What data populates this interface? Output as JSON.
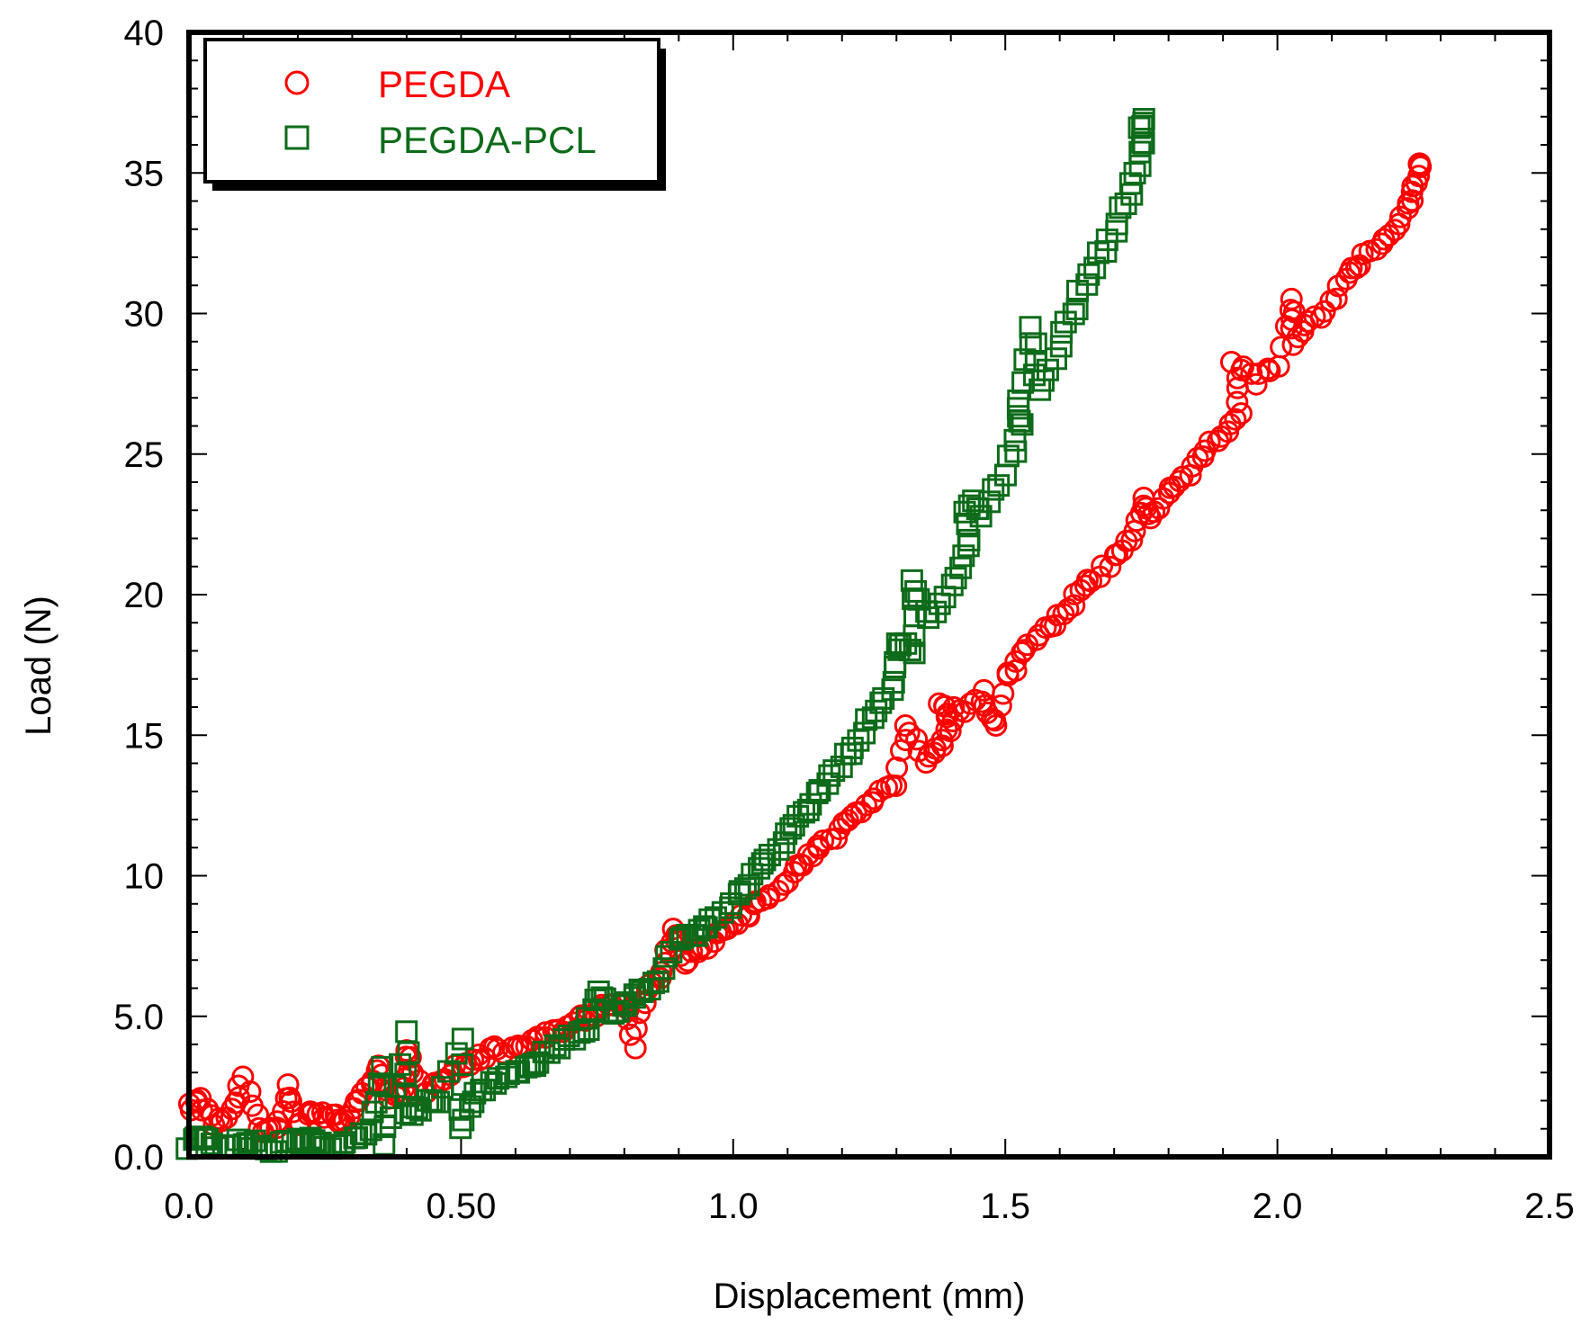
{
  "chart_data": {
    "type": "scatter",
    "title": "",
    "xlabel": "Displacement (mm)",
    "ylabel": "Load (N)",
    "xlim": [
      0,
      2.5
    ],
    "ylim": [
      0,
      40
    ],
    "xticks": [
      {
        "value": 0,
        "label": "0.0"
      },
      {
        "value": 0.5,
        "label": "0.50"
      },
      {
        "value": 1.0,
        "label": "1.0"
      },
      {
        "value": 1.5,
        "label": "1.5"
      },
      {
        "value": 2.0,
        "label": "2.0"
      },
      {
        "value": 2.5,
        "label": "2.5"
      }
    ],
    "yticks": [
      {
        "value": 0,
        "label": "0.0"
      },
      {
        "value": 5,
        "label": "5.0"
      },
      {
        "value": 10,
        "label": "10"
      },
      {
        "value": 15,
        "label": "15"
      },
      {
        "value": 20,
        "label": "20"
      },
      {
        "value": 25,
        "label": "25"
      },
      {
        "value": 30,
        "label": "30"
      },
      {
        "value": 35,
        "label": "35"
      },
      {
        "value": 40,
        "label": "40"
      }
    ],
    "legend_position": "top-left",
    "grid": false,
    "series": [
      {
        "name": "PEGDA",
        "marker": "circle",
        "color": "#ff0000",
        "points": [
          [
            0.0,
            1.8
          ],
          [
            0.02,
            2.0
          ],
          [
            0.05,
            1.2
          ],
          [
            0.08,
            1.6
          ],
          [
            0.1,
            2.7
          ],
          [
            0.13,
            1.0
          ],
          [
            0.16,
            0.9
          ],
          [
            0.18,
            2.6
          ],
          [
            0.2,
            1.2
          ],
          [
            0.23,
            1.7
          ],
          [
            0.26,
            1.4
          ],
          [
            0.28,
            1.3
          ],
          [
            0.3,
            1.6
          ],
          [
            0.33,
            2.4
          ],
          [
            0.35,
            3.1
          ],
          [
            0.37,
            2.2
          ],
          [
            0.4,
            2.3
          ],
          [
            0.4,
            3.9
          ],
          [
            0.43,
            2.3
          ],
          [
            0.46,
            2.8
          ],
          [
            0.5,
            3.2
          ],
          [
            0.53,
            3.5
          ],
          [
            0.56,
            3.8
          ],
          [
            0.6,
            3.9
          ],
          [
            0.63,
            4.1
          ],
          [
            0.66,
            4.3
          ],
          [
            0.7,
            4.7
          ],
          [
            0.73,
            5.0
          ],
          [
            0.76,
            5.3
          ],
          [
            0.8,
            5.6
          ],
          [
            0.82,
            4.0
          ],
          [
            0.84,
            6.0
          ],
          [
            0.87,
            6.5
          ],
          [
            0.89,
            8.1
          ],
          [
            0.91,
            7.0
          ],
          [
            0.94,
            7.3
          ],
          [
            0.97,
            7.8
          ],
          [
            1.0,
            8.2
          ],
          [
            1.03,
            8.7
          ],
          [
            1.06,
            9.3
          ],
          [
            1.1,
            9.9
          ],
          [
            1.13,
            10.5
          ],
          [
            1.16,
            11.0
          ],
          [
            1.2,
            11.6
          ],
          [
            1.23,
            12.2
          ],
          [
            1.26,
            12.8
          ],
          [
            1.3,
            13.3
          ],
          [
            1.32,
            15.4
          ],
          [
            1.35,
            14.0
          ],
          [
            1.38,
            14.7
          ],
          [
            1.4,
            15.4
          ],
          [
            1.38,
            16.2
          ],
          [
            1.43,
            15.8
          ],
          [
            1.46,
            16.5
          ],
          [
            1.48,
            15.2
          ],
          [
            1.5,
            17.1
          ],
          [
            1.53,
            17.8
          ],
          [
            1.56,
            18.6
          ],
          [
            1.6,
            19.2
          ],
          [
            1.63,
            19.9
          ],
          [
            1.66,
            20.6
          ],
          [
            1.7,
            21.3
          ],
          [
            1.73,
            22.0
          ],
          [
            1.75,
            23.3
          ],
          [
            1.77,
            22.6
          ],
          [
            1.8,
            23.5
          ],
          [
            1.83,
            24.2
          ],
          [
            1.86,
            24.9
          ],
          [
            1.9,
            25.7
          ],
          [
            1.93,
            26.5
          ],
          [
            1.92,
            28.3
          ],
          [
            1.96,
            27.6
          ],
          [
            2.0,
            28.2
          ],
          [
            2.03,
            30.6
          ],
          [
            2.03,
            29.0
          ],
          [
            2.06,
            29.6
          ],
          [
            2.1,
            30.4
          ],
          [
            2.13,
            31.3
          ],
          [
            2.16,
            32.0
          ],
          [
            2.2,
            32.7
          ],
          [
            2.23,
            33.5
          ],
          [
            2.25,
            34.2
          ],
          [
            2.26,
            35.2
          ]
        ]
      },
      {
        "name": "PEGDA-PCL",
        "marker": "square",
        "color": "#0d6b1a",
        "points": [
          [
            0.0,
            0.4
          ],
          [
            0.03,
            0.7
          ],
          [
            0.06,
            0.3
          ],
          [
            0.1,
            0.5
          ],
          [
            0.13,
            0.4
          ],
          [
            0.16,
            0.3
          ],
          [
            0.2,
            0.6
          ],
          [
            0.23,
            0.5
          ],
          [
            0.26,
            0.4
          ],
          [
            0.3,
            0.6
          ],
          [
            0.33,
            0.9
          ],
          [
            0.36,
            3.2
          ],
          [
            0.36,
            0.5
          ],
          [
            0.4,
            4.4
          ],
          [
            0.4,
            1.5
          ],
          [
            0.43,
            1.8
          ],
          [
            0.46,
            2.0
          ],
          [
            0.5,
            4.2
          ],
          [
            0.5,
            1.0
          ],
          [
            0.53,
            2.3
          ],
          [
            0.56,
            2.6
          ],
          [
            0.6,
            3.0
          ],
          [
            0.63,
            3.3
          ],
          [
            0.66,
            3.7
          ],
          [
            0.7,
            4.2
          ],
          [
            0.73,
            4.6
          ],
          [
            0.75,
            6.0
          ],
          [
            0.78,
            5.0
          ],
          [
            0.8,
            5.4
          ],
          [
            0.83,
            5.8
          ],
          [
            0.86,
            6.3
          ],
          [
            0.9,
            7.7
          ],
          [
            0.93,
            7.8
          ],
          [
            0.96,
            8.3
          ],
          [
            1.0,
            9.0
          ],
          [
            1.03,
            9.8
          ],
          [
            1.06,
            10.6
          ],
          [
            1.1,
            11.4
          ],
          [
            1.13,
            12.2
          ],
          [
            1.16,
            13.1
          ],
          [
            1.2,
            14.0
          ],
          [
            1.23,
            14.9
          ],
          [
            1.26,
            15.9
          ],
          [
            1.3,
            17.0
          ],
          [
            1.3,
            18.3
          ],
          [
            1.33,
            18.0
          ],
          [
            1.33,
            20.5
          ],
          [
            1.36,
            19.1
          ],
          [
            1.4,
            20.3
          ],
          [
            1.43,
            21.6
          ],
          [
            1.43,
            23.3
          ],
          [
            1.46,
            22.9
          ],
          [
            1.5,
            24.4
          ],
          [
            1.53,
            25.9
          ],
          [
            1.52,
            26.9
          ],
          [
            1.55,
            29.5
          ],
          [
            1.56,
            27.4
          ],
          [
            1.6,
            28.9
          ],
          [
            1.63,
            30.3
          ],
          [
            1.66,
            31.7
          ],
          [
            1.7,
            33.0
          ],
          [
            1.73,
            34.3
          ],
          [
            1.75,
            35.6
          ],
          [
            1.75,
            36.8
          ]
        ]
      }
    ]
  }
}
